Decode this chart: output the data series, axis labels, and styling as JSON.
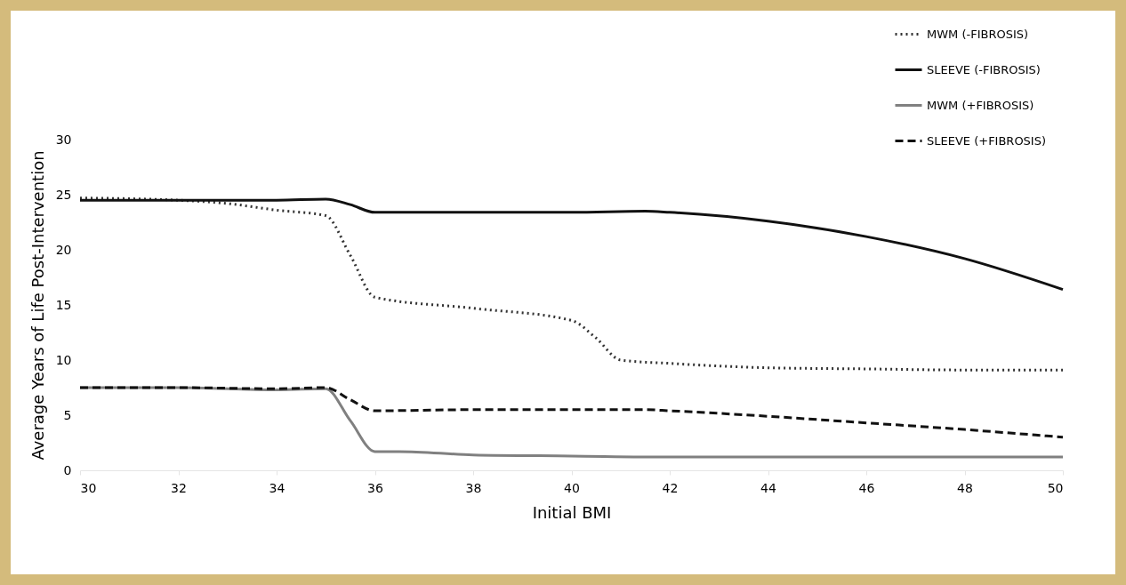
{
  "chart_data": {
    "type": "line",
    "xlabel": "Initial BMI",
    "ylabel": "Average Years of Life Post-Intervention",
    "xlim": [
      30,
      50
    ],
    "xticks": [
      30,
      32,
      34,
      36,
      38,
      40,
      42,
      44,
      46,
      48,
      50
    ],
    "ylim": [
      0,
      30
    ],
    "yticks": [
      0,
      5,
      10,
      15,
      20,
      25,
      30
    ],
    "grid": false,
    "legend": "top right",
    "series": [
      {
        "name": "MWM (-FIBROSIS)",
        "color": "#333333",
        "line_style": "dotted",
        "x": [
          30,
          32,
          33,
          34,
          35,
          35.5,
          36,
          38,
          40,
          40.5,
          41,
          42,
          44,
          46,
          48,
          50
        ],
        "values": [
          24.7,
          24.5,
          24.2,
          23.6,
          23.1,
          19.5,
          15.7,
          14.7,
          13.6,
          12.0,
          10.0,
          9.7,
          9.3,
          9.2,
          9.1,
          9.1
        ]
      },
      {
        "name": "SLEEVE (-FIBROSIS)",
        "color": "#111111",
        "line_style": "solid",
        "x": [
          30,
          32,
          34,
          35,
          35.5,
          36,
          38,
          40,
          41.5,
          42,
          44,
          46,
          48,
          50
        ],
        "values": [
          24.5,
          24.5,
          24.5,
          24.6,
          24.1,
          23.4,
          23.4,
          23.4,
          23.5,
          23.4,
          22.6,
          21.2,
          19.2,
          16.4
        ]
      },
      {
        "name": "MWM (+FIBROSIS)",
        "color": "#808080",
        "line_style": "solid",
        "x": [
          30,
          32,
          34,
          35,
          35.5,
          36,
          36.5,
          38,
          40,
          42,
          44,
          46,
          48,
          50
        ],
        "values": [
          7.5,
          7.5,
          7.3,
          7.4,
          4.5,
          1.7,
          1.7,
          1.4,
          1.3,
          1.2,
          1.2,
          1.2,
          1.2,
          1.2
        ]
      },
      {
        "name": "SLEEVE (+FIBROSIS)",
        "color": "#111111",
        "line_style": "dashed",
        "x": [
          30,
          32,
          34,
          35,
          35.5,
          36,
          38,
          40,
          41.5,
          42,
          44,
          46,
          48,
          50
        ],
        "values": [
          7.5,
          7.5,
          7.4,
          7.5,
          6.4,
          5.4,
          5.5,
          5.5,
          5.5,
          5.4,
          4.9,
          4.3,
          3.7,
          3.0
        ]
      }
    ]
  }
}
